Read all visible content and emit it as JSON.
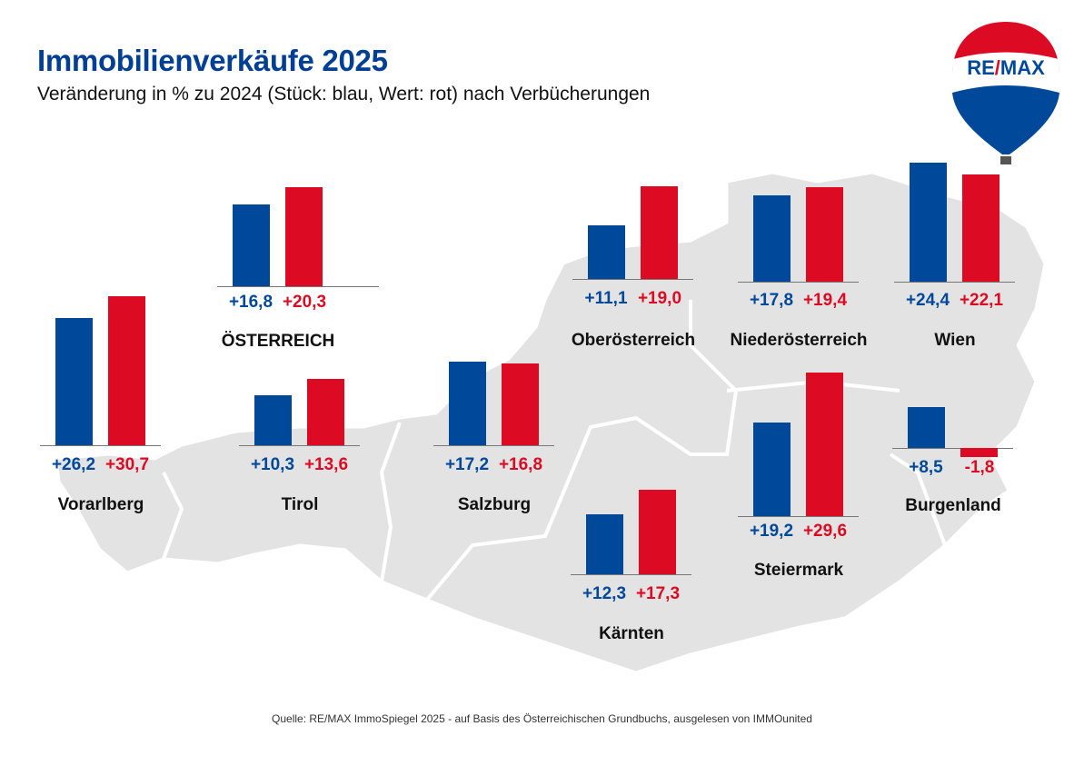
{
  "header": {
    "title": "Immobilienverkäufe 2025",
    "subtitle": "Veränderung in % zu 2024 (Stück: blau, Wert: rot) nach Verbücherungen"
  },
  "logo": {
    "text": "RE/MAX"
  },
  "footer": {
    "source": "Quelle: RE/MAX ImmoSpiegel 2025 - auf Basis des Österreichischen Grundbuchs, ausgelesen von IMMOunited"
  },
  "colors": {
    "blue": "#00489a",
    "red": "#dc0a22",
    "map": "#e3e3e3"
  },
  "chart_data": {
    "type": "bar",
    "title": "Immobilienverkäufe 2025",
    "subtitle": "Veränderung in % zu 2024 (Stück: blau, Wert: rot) nach Verbücherungen",
    "series_legend": "Stück: blau, Wert: rot",
    "regions": [
      {
        "name": "ÖSTERREICH",
        "stueck": 16.8,
        "wert": 20.3,
        "stueck_label": "+16,8",
        "wert_label": "+20,3"
      },
      {
        "name": "Vorarlberg",
        "stueck": 26.2,
        "wert": 30.7,
        "stueck_label": "+26,2",
        "wert_label": "+30,7"
      },
      {
        "name": "Tirol",
        "stueck": 10.3,
        "wert": 13.6,
        "stueck_label": "+10,3",
        "wert_label": "+13,6"
      },
      {
        "name": "Salzburg",
        "stueck": 17.2,
        "wert": 16.8,
        "stueck_label": "+17,2",
        "wert_label": "+16,8"
      },
      {
        "name": "Oberösterreich",
        "stueck": 11.1,
        "wert": 19.0,
        "stueck_label": "+11,1",
        "wert_label": "+19,0"
      },
      {
        "name": "Niederösterreich",
        "stueck": 17.8,
        "wert": 19.4,
        "stueck_label": "+17,8",
        "wert_label": "+19,4"
      },
      {
        "name": "Wien",
        "stueck": 24.4,
        "wert": 22.1,
        "stueck_label": "+24,4",
        "wert_label": "+22,1"
      },
      {
        "name": "Kärnten",
        "stueck": 12.3,
        "wert": 17.3,
        "stueck_label": "+12,3",
        "wert_label": "+17,3"
      },
      {
        "name": "Steiermark",
        "stueck": 19.2,
        "wert": 29.6,
        "stueck_label": "+19,2",
        "wert_label": "+29,6"
      },
      {
        "name": "Burgenland",
        "stueck": 8.5,
        "wert": -1.8,
        "stueck_label": "+8,5",
        "wert_label": "-1,8"
      }
    ]
  }
}
